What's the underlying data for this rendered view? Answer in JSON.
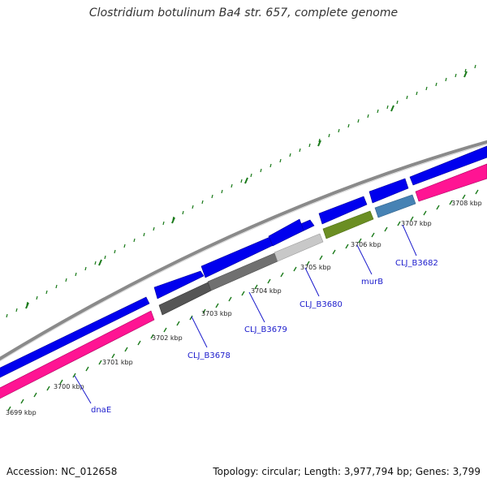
{
  "title": "Clostridium botulinum Ba4 str. 657, complete genome",
  "footer": {
    "accession": "Accession: NC_012658",
    "summary": "Topology: circular; Length: 3,977,794 bp; Genes: 3,799"
  },
  "scale": {
    "labels": [
      "3699 kbp",
      "3700 kbp",
      "3701 kbp",
      "3702 kbp",
      "3703 kbp",
      "3704 kbp",
      "3705 kbp",
      "3706 kbp",
      "3707 kbp",
      "3708 kbp"
    ]
  },
  "genes": [
    {
      "label": "dnaE",
      "color": "#ff1493"
    },
    {
      "label": "CLJ_B3678",
      "color": "#555555"
    },
    {
      "label": "CLJ_B3679",
      "color": "#707070"
    },
    {
      "label": "CLJ_B3680",
      "color": "#c8c8c8"
    },
    {
      "label": "murB",
      "color": "#6b8e23"
    },
    {
      "label": "CLJ_B3682",
      "color": "#4682b4"
    }
  ],
  "colors": {
    "backbone": "#8a8a8a",
    "cds": "#0000ee",
    "ticks": "#1a7a1a",
    "rna": "#ff1493"
  }
}
